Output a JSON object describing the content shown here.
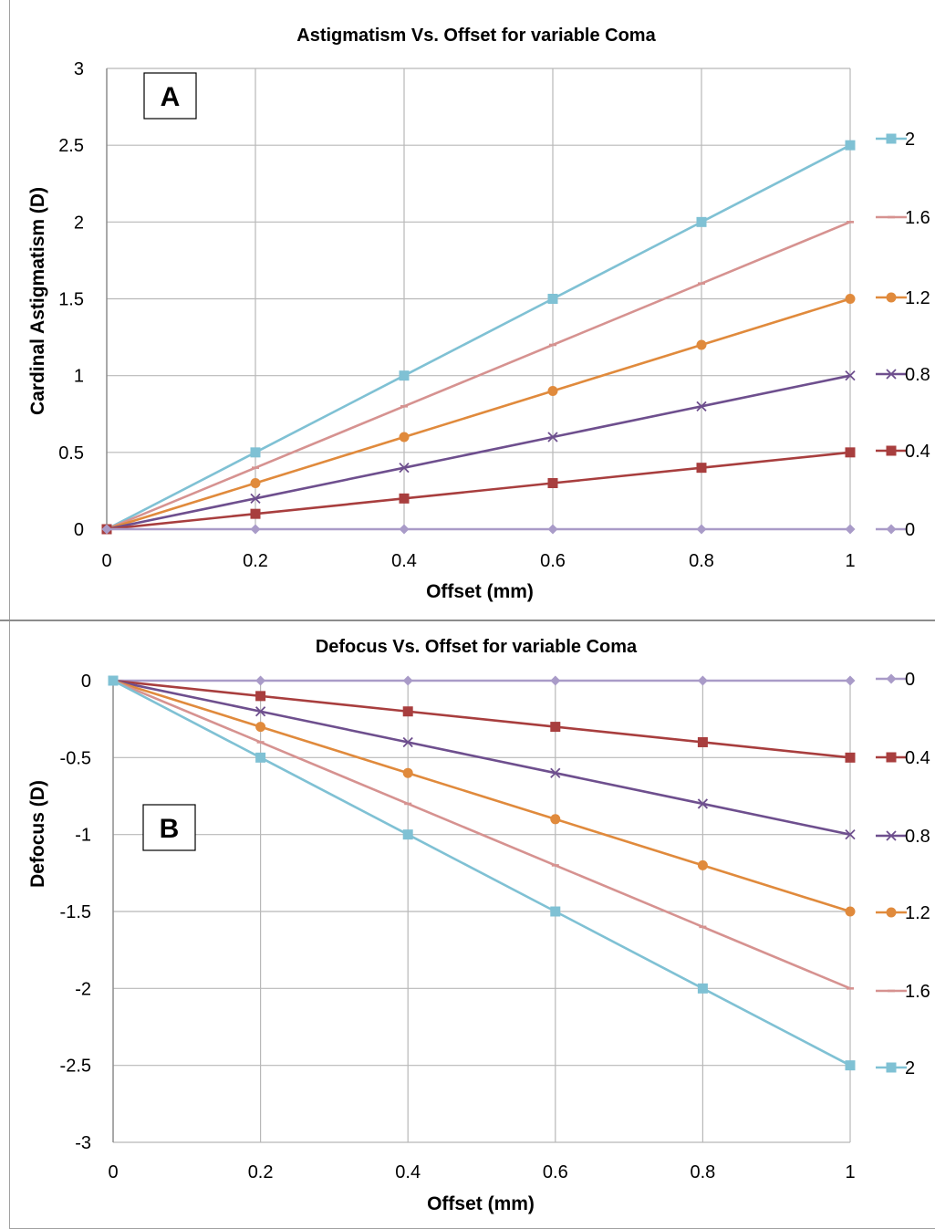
{
  "chart_data": [
    {
      "type": "line",
      "id": "A",
      "panel_label": "A",
      "title": "Astigmatism Vs. Offset for variable Coma",
      "xlabel": "Offset (mm)",
      "ylabel": "Cardinal Astigmatism (D)",
      "x": [
        0,
        0.2,
        0.4,
        0.6,
        0.8,
        1
      ],
      "xticks": [
        "0",
        "0.2",
        "0.4",
        "0.6",
        "0.8",
        "1"
      ],
      "yticks": [
        "0",
        "0.5",
        "1",
        "1.5",
        "2",
        "2.5",
        "3"
      ],
      "xlim": [
        0,
        1
      ],
      "ylim": [
        0,
        3
      ],
      "grid": true,
      "legend_position": "right",
      "series": [
        {
          "name": "2",
          "color": "#7fc1d4",
          "marker": "square",
          "values": [
            0,
            0.5,
            1.0,
            1.5,
            2.0,
            2.5
          ]
        },
        {
          "name": "1.6",
          "color": "#d69290",
          "marker": "dash",
          "values": [
            0,
            0.4,
            0.8,
            1.2,
            1.6,
            2.0
          ]
        },
        {
          "name": "1.2",
          "color": "#e08a3c",
          "marker": "circle",
          "values": [
            0,
            0.3,
            0.6,
            0.9,
            1.2,
            1.5
          ]
        },
        {
          "name": "0.8",
          "color": "#6e4f8e",
          "marker": "x",
          "values": [
            0,
            0.2,
            0.4,
            0.6,
            0.8,
            1.0
          ]
        },
        {
          "name": "0.4",
          "color": "#a83e3e",
          "marker": "square",
          "values": [
            0,
            0.1,
            0.2,
            0.3,
            0.4,
            0.5
          ]
        },
        {
          "name": "0",
          "color": "#a99bc8",
          "marker": "diamond",
          "values": [
            0,
            0,
            0,
            0,
            0,
            0
          ]
        }
      ]
    },
    {
      "type": "line",
      "id": "B",
      "panel_label": "B",
      "title": "Defocus Vs. Offset for variable Coma",
      "xlabel": "Offset (mm)",
      "ylabel": "Defocus (D)",
      "x": [
        0,
        0.2,
        0.4,
        0.6,
        0.8,
        1
      ],
      "xticks": [
        "0",
        "0.2",
        "0.4",
        "0.6",
        "0.8",
        "1"
      ],
      "yticks": [
        "-3",
        "-2.5",
        "-2",
        "-1.5",
        "-1",
        "-0.5",
        "0"
      ],
      "xlim": [
        0,
        1
      ],
      "ylim": [
        -3,
        0
      ],
      "grid": true,
      "legend_position": "right",
      "series": [
        {
          "name": "0",
          "color": "#a99bc8",
          "marker": "diamond",
          "values": [
            0,
            0,
            0,
            0,
            0,
            0
          ]
        },
        {
          "name": "0.4",
          "color": "#a83e3e",
          "marker": "square",
          "values": [
            0,
            -0.1,
            -0.2,
            -0.3,
            -0.4,
            -0.5
          ]
        },
        {
          "name": "0.8",
          "color": "#6e4f8e",
          "marker": "x",
          "values": [
            0,
            -0.2,
            -0.4,
            -0.6,
            -0.8,
            -1.0
          ]
        },
        {
          "name": "1.2",
          "color": "#e08a3c",
          "marker": "circle",
          "values": [
            0,
            -0.3,
            -0.6,
            -0.9,
            -1.2,
            -1.5
          ]
        },
        {
          "name": "1.6",
          "color": "#d69290",
          "marker": "dash",
          "values": [
            0,
            -0.4,
            -0.8,
            -1.2,
            -1.6,
            -2.0
          ]
        },
        {
          "name": "2",
          "color": "#7fc1d4",
          "marker": "square",
          "values": [
            0,
            -0.5,
            -1.0,
            -1.5,
            -2.0,
            -2.5
          ]
        }
      ]
    }
  ]
}
